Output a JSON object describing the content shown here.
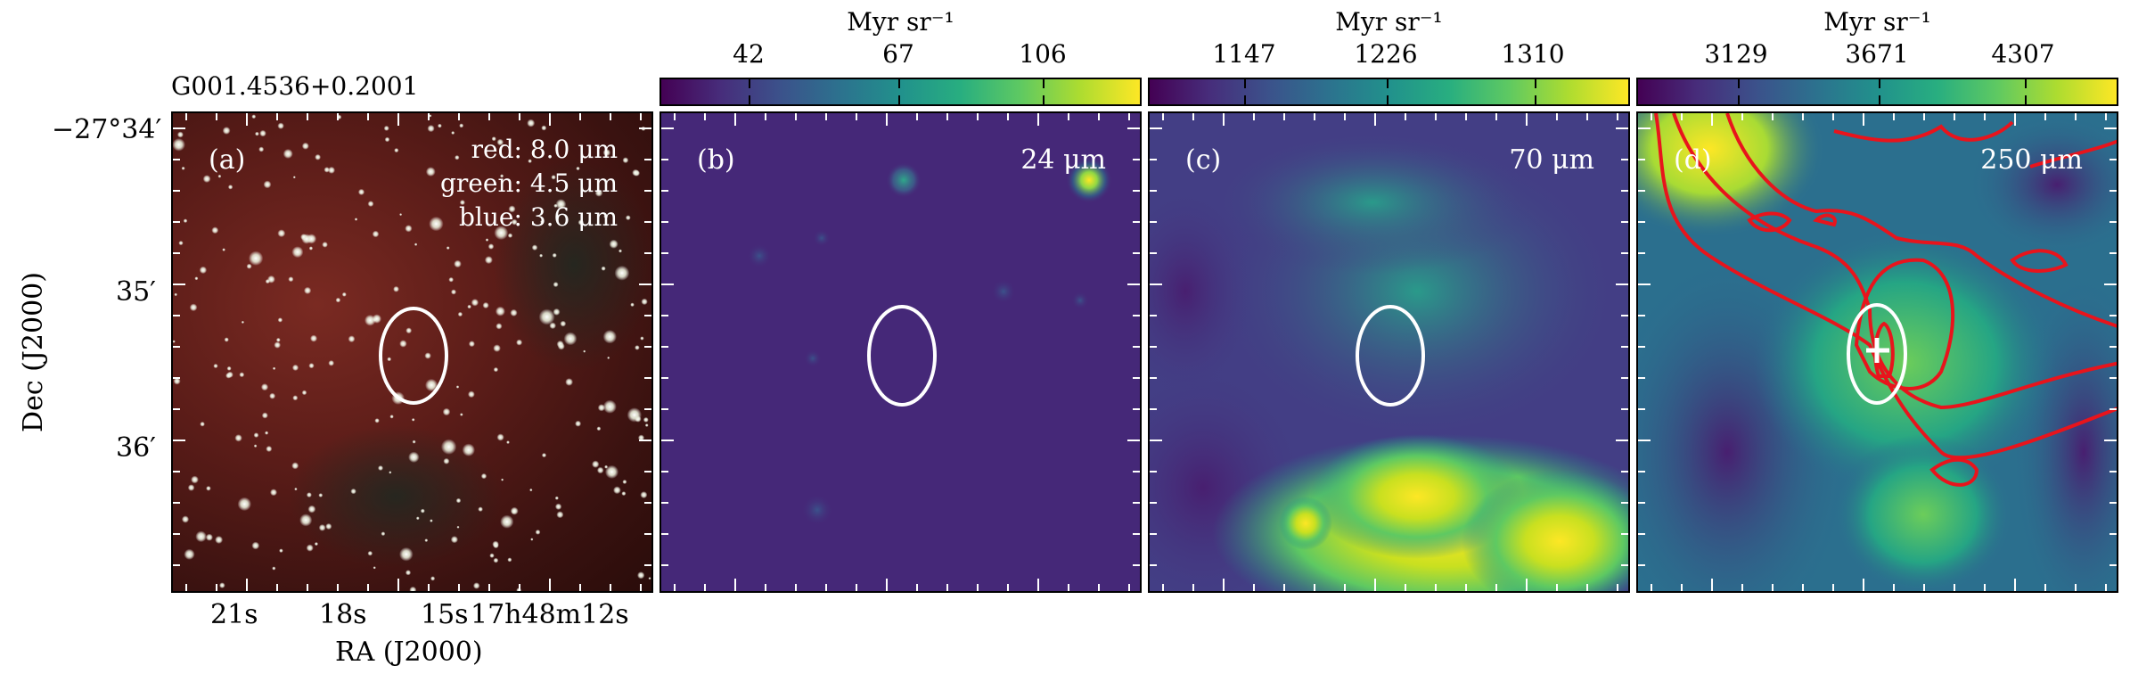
{
  "source_name": "G001.4536+0.2001",
  "axes": {
    "xlabel": "RA (J2000)",
    "ylabel": "Dec (J2000)",
    "x_ticks": [
      "21s",
      "18s",
      "15s",
      "17h48m12s"
    ],
    "y_ticks": [
      "−27°34′",
      "35′",
      "36′"
    ]
  },
  "panels": [
    {
      "id": "a",
      "tag": "(a)",
      "legend": [
        "red: 8.0 μm",
        "green: 4.5 μm",
        "blue: 3.6 μm"
      ]
    },
    {
      "id": "b",
      "tag": "(b)",
      "band": "24 μm"
    },
    {
      "id": "c",
      "tag": "(c)",
      "band": "70 μm"
    },
    {
      "id": "d",
      "tag": "(d)",
      "band": "250 μm"
    }
  ],
  "colorbars": [
    {
      "title": "Myr sr⁻¹",
      "ticks": [
        "42",
        "67",
        "106"
      ]
    },
    {
      "title": "Myr sr⁻¹",
      "ticks": [
        "1147",
        "1226",
        "1310"
      ]
    },
    {
      "title": "Myr sr⁻¹",
      "ticks": [
        "3129",
        "3671",
        "4307"
      ]
    }
  ],
  "colors": {
    "contour": "#e8141c",
    "ellipse": "#ffffff",
    "viridis_low": "#440154",
    "viridis_high": "#fde725"
  }
}
